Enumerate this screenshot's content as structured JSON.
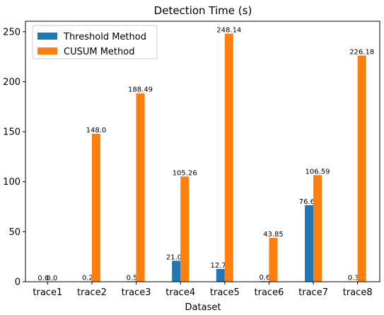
{
  "chart_data": {
    "type": "bar",
    "title": "Detection Time (s)",
    "xlabel": "Dataset",
    "ylabel": "",
    "categories": [
      "trace1",
      "trace2",
      "trace3",
      "trace4",
      "trace5",
      "trace6",
      "trace7",
      "trace8"
    ],
    "series": [
      {
        "name": "Threshold Method",
        "color": "#1f77b4",
        "values": [
          0.0,
          0.2,
          0.5,
          21.01,
          12.74,
          0.6,
          76.62,
          0.3
        ],
        "labels": [
          "0.0",
          "0.2",
          "0.5",
          "21.01",
          "12.74",
          "0.6",
          "76.62",
          "0.3"
        ]
      },
      {
        "name": "CUSUM Method",
        "color": "#ff7f0e",
        "values": [
          0.0,
          148.0,
          188.49,
          105.26,
          248.14,
          43.85,
          106.59,
          226.18
        ],
        "labels": [
          "0.0",
          "148.0",
          "188.49",
          "105.26",
          "248.14",
          "43.85",
          "106.59",
          "226.18"
        ]
      }
    ],
    "ylim": [
      0,
      260.5
    ],
    "yticks": [
      0,
      50,
      100,
      150,
      200,
      250
    ],
    "ytick_labels": [
      "0",
      "50",
      "100",
      "150",
      "200",
      "250"
    ],
    "grid": false,
    "legend_position": "top-left"
  }
}
